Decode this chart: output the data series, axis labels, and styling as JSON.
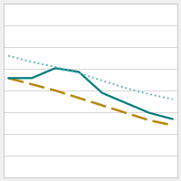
{
  "x": [
    0,
    1,
    2,
    3,
    4,
    5,
    6,
    7
  ],
  "solid_line": [
    8.0,
    8.0,
    8.8,
    8.5,
    6.8,
    6.0,
    5.2,
    4.7
  ],
  "dotted_line": [
    9.8,
    9.3,
    8.9,
    8.4,
    7.8,
    7.2,
    6.7,
    6.3
  ],
  "dashed_line": [
    8.0,
    7.5,
    7.0,
    6.4,
    5.8,
    5.2,
    4.6,
    4.2
  ],
  "solid_color": "#007b7b",
  "dotted_color": "#5aadad",
  "dashed_color": "#b8860b",
  "bg_color": "#f0f0f0",
  "plot_bg": "#ffffff",
  "ylim": [
    0,
    14
  ],
  "xlim": [
    -0.2,
    7.2
  ],
  "grid_color": "#d0d0d0",
  "grid_linewidth": 0.6,
  "solid_linewidth": 1.6,
  "dotted_linewidth": 1.3,
  "dashed_linewidth": 1.8,
  "n_gridlines": 9,
  "figsize": [
    2.0,
    2.0
  ],
  "dpi": 100
}
